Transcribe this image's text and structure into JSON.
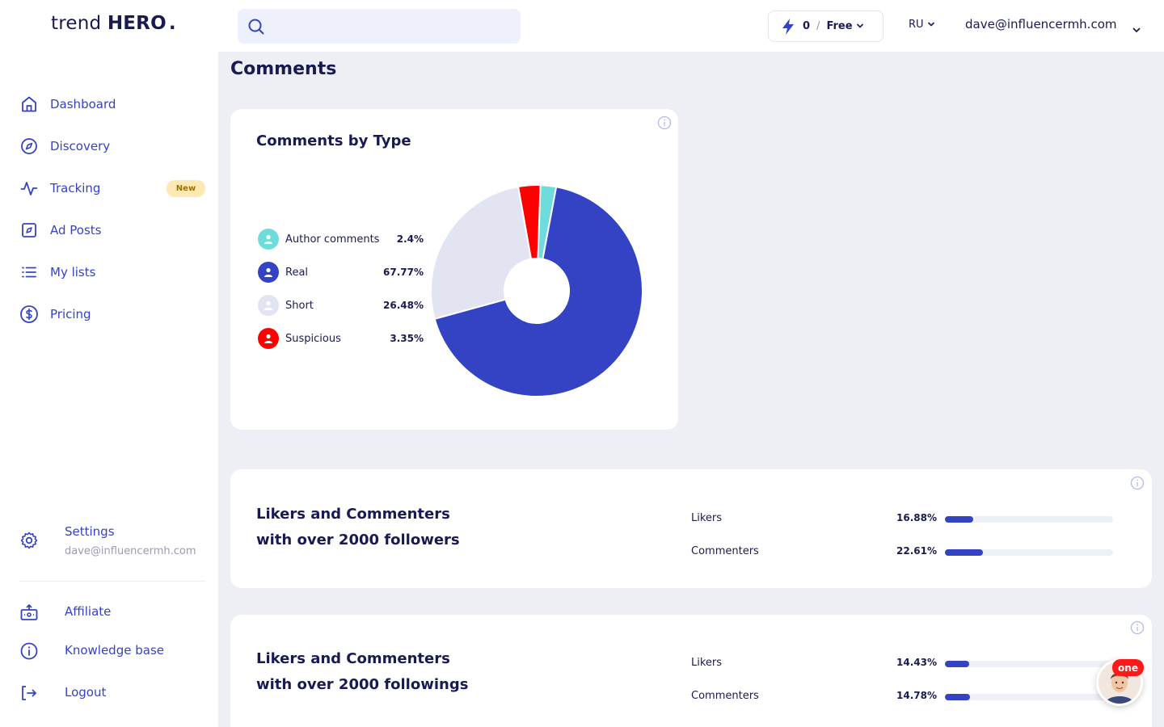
{
  "brand": {
    "name_light": "trend",
    "name_bold": "HERO",
    "dot": "."
  },
  "header": {
    "search_placeholder": "",
    "credits": "0",
    "slash": "/",
    "plan": "Free",
    "language": "RU",
    "user_email": "dave@influencermh.com"
  },
  "sidebar": {
    "items": [
      {
        "label": "Dashboard",
        "icon": "home-icon"
      },
      {
        "label": "Discovery",
        "icon": "compass-icon"
      },
      {
        "label": "Tracking",
        "icon": "pulse-icon",
        "badge": "New"
      },
      {
        "label": "Ad Posts",
        "icon": "ad-post-icon"
      },
      {
        "label": "My lists",
        "icon": "list-icon"
      },
      {
        "label": "Pricing",
        "icon": "dollar-icon"
      }
    ],
    "settings": {
      "label": "Settings",
      "email": "dave@influencermh.com"
    },
    "bottom": [
      {
        "label": "Affiliate",
        "icon": "gift-icon"
      },
      {
        "label": "Knowledge base",
        "icon": "info-icon"
      },
      {
        "label": "Logout",
        "icon": "logout-icon"
      }
    ]
  },
  "page": {
    "title": "Comments"
  },
  "comments_by_type": {
    "title": "Comments by Type",
    "legend": [
      {
        "name": "Author comments",
        "pct": "2.4%",
        "color": "#6fdcdc"
      },
      {
        "name": "Real",
        "pct": "67.77%",
        "color": "#3443c4"
      },
      {
        "name": "Short",
        "pct": "26.48%",
        "color": "#e3e4f1"
      },
      {
        "name": "Suspicious",
        "pct": "3.35%",
        "color": "#ff0000"
      }
    ]
  },
  "chart_data": {
    "type": "pie",
    "title": "Comments by Type",
    "categories": [
      "Author comments",
      "Real",
      "Short",
      "Suspicious"
    ],
    "values": [
      2.4,
      67.77,
      26.48,
      3.35
    ],
    "colors": [
      "#6fdcdc",
      "#3443c4",
      "#e3e4f1",
      "#ff0000"
    ],
    "donut": true
  },
  "followers_card": {
    "title_line1": "Likers and Commenters",
    "title_line2": "with over 2000 followers",
    "rows": [
      {
        "label": "Likers",
        "value": "16.88%",
        "fraction": 0.1688
      },
      {
        "label": "Commenters",
        "value": "22.61%",
        "fraction": 0.2261
      }
    ]
  },
  "followings_card": {
    "title_line1": "Likers and Commenters",
    "title_line2": "with over 2000 followings",
    "rows": [
      {
        "label": "Likers",
        "value": "14.43%",
        "fraction": 0.1443
      },
      {
        "label": "Commenters",
        "value": "14.78%",
        "fraction": 0.1478
      }
    ]
  },
  "chat_widget": {
    "badge": "one"
  }
}
